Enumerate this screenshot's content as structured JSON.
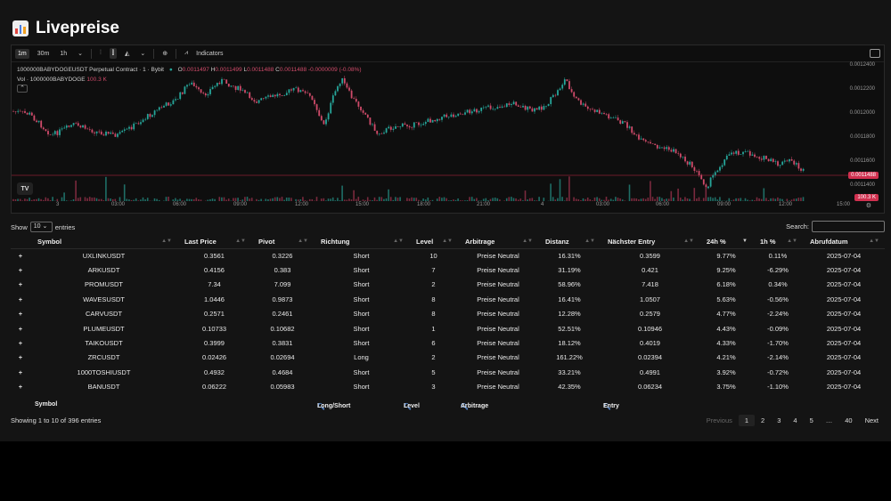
{
  "app": {
    "title": "Livepreise"
  },
  "chart": {
    "toolbar": {
      "intervals": [
        "1m",
        "30m",
        "1h"
      ],
      "indicators_label": "Indicators"
    },
    "legend": {
      "symbol": "1000000BABYDOGEUSDT Perpetual Contract · 1 · Bybit",
      "o_label": "O",
      "o_val": "0.0011497",
      "h_label": "H",
      "h_val": "0.0011499",
      "l_label": "L",
      "l_val": "0.0011488",
      "c_label": "C",
      "c_val": "0.0011488",
      "change": "-0.0000009 (-0.08%)",
      "vol_label": "Vol · 1000000BABYDOGE",
      "vol_val": "100.3 K"
    },
    "y_ticks": [
      "0.0012400",
      "0.0012200",
      "0.0012000",
      "0.0011800",
      "0.0011600",
      "0.0011400"
    ],
    "x_ticks": [
      "3",
      "03:00",
      "06:00",
      "09:00",
      "12:00",
      "15:00",
      "18:00",
      "21:00",
      "4",
      "03:00",
      "06:00",
      "09:00",
      "12:00",
      "15:00"
    ],
    "price_badge": "0.0011488",
    "vol_badge": "100.3 K",
    "tv_logo": "TV",
    "colors": {
      "up": "#26a69a",
      "down": "#d04b6a",
      "line": "#8a1f35"
    }
  },
  "controls": {
    "show_label": "Show",
    "length": "10",
    "entries_label": "entries",
    "search_label": "Search:"
  },
  "table": {
    "headers": [
      "Symbol",
      "Last Price",
      "Pivot",
      "Richtung",
      "Level",
      "Arbitrage",
      "Distanz",
      "Nächster Entry",
      "24h %",
      "1h %",
      "Abrufdatum"
    ],
    "rows": [
      [
        "+",
        "UXLINKUSDT",
        "0.3561",
        "0.3226",
        "Short",
        "10",
        "Preise Neutral",
        "16.31%",
        "0.3599",
        "9.77%",
        "0.11%",
        "2025-07-04"
      ],
      [
        "+",
        "ARKUSDT",
        "0.4156",
        "0.383",
        "Short",
        "7",
        "Preise Neutral",
        "31.19%",
        "0.421",
        "9.25%",
        "-6.29%",
        "2025-07-04"
      ],
      [
        "+",
        "PROMUSDT",
        "7.34",
        "7.099",
        "Short",
        "2",
        "Preise Neutral",
        "58.96%",
        "7.418",
        "6.18%",
        "0.34%",
        "2025-07-04"
      ],
      [
        "+",
        "WAVESUSDT",
        "1.0446",
        "0.9873",
        "Short",
        "8",
        "Preise Neutral",
        "16.41%",
        "1.0507",
        "5.63%",
        "-0.56%",
        "2025-07-04"
      ],
      [
        "+",
        "CARVUSDT",
        "0.2571",
        "0.2461",
        "Short",
        "8",
        "Preise Neutral",
        "12.28%",
        "0.2579",
        "4.77%",
        "-2.24%",
        "2025-07-04"
      ],
      [
        "+",
        "PLUMEUSDT",
        "0.10733",
        "0.10682",
        "Short",
        "1",
        "Preise Neutral",
        "52.51%",
        "0.10946",
        "4.43%",
        "-0.09%",
        "2025-07-04"
      ],
      [
        "+",
        "TAIKOUSDT",
        "0.3999",
        "0.3831",
        "Short",
        "6",
        "Preise Neutral",
        "18.12%",
        "0.4019",
        "4.33%",
        "-1.70%",
        "2025-07-04"
      ],
      [
        "+",
        "ZRCUSDT",
        "0.02426",
        "0.02694",
        "Long",
        "2",
        "Preise Neutral",
        "161.22%",
        "0.02394",
        "4.21%",
        "-2.14%",
        "2025-07-04"
      ],
      [
        "+",
        "1000TOSHIUSDT",
        "0.4932",
        "0.4684",
        "Short",
        "5",
        "Preise Neutral",
        "33.21%",
        "0.4991",
        "3.92%",
        "-0.72%",
        "2025-07-04"
      ],
      [
        "+",
        "BANUSDT",
        "0.06222",
        "0.05983",
        "Short",
        "3",
        "Preise Neutral",
        "42.35%",
        "0.06234",
        "3.75%",
        "-1.10%",
        "2025-07-04"
      ]
    ]
  },
  "filters": {
    "symbol": "Symbol",
    "long_short": "Long/Short",
    "level": "Level",
    "arbitrage": "Arbitrage",
    "entry": "Entry"
  },
  "footer": {
    "info": "Showing 1 to 10 of 396 entries",
    "previous": "Previous",
    "pages": [
      "1",
      "2",
      "3",
      "4",
      "5",
      "…",
      "40"
    ],
    "next": "Next"
  }
}
